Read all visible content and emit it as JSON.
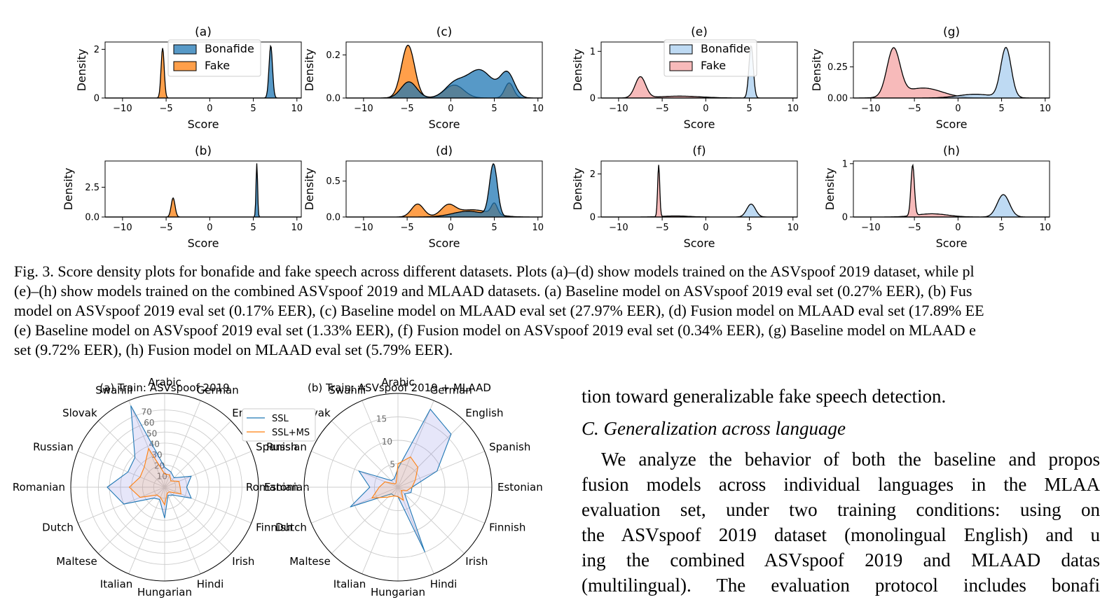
{
  "figure": {
    "x_label": "Score",
    "y_label": "Density",
    "x_ticks": [
      "−10",
      "−5",
      "0",
      "5",
      "10"
    ],
    "legend_left": [
      "Bonafide",
      "Fake"
    ],
    "legend_right": [
      "Bonafide",
      "Fake"
    ],
    "colors": {
      "bonafide_asv": "#1f77b4",
      "fake_asv": "#ff7f0e",
      "bonafide_comb": "#a8cdef",
      "fake_comb": "#f4a3a3"
    }
  },
  "chart_data": [
    {
      "type": "area",
      "title": "(a)",
      "xlabel": "Score",
      "ylabel": "Density",
      "xlim": [
        -12,
        10.5
      ],
      "ylim": [
        0,
        2.3
      ],
      "yticks": [
        "0",
        "2"
      ],
      "legend": "upper-center",
      "series": [
        {
          "name": "Bonafide",
          "peaks": [
            {
              "mu": 7.0,
              "sigma": 0.2,
              "height": 2.15
            }
          ]
        },
        {
          "name": "Fake",
          "peaks": [
            {
              "mu": -5.4,
              "sigma": 0.18,
              "height": 2.05
            }
          ]
        }
      ]
    },
    {
      "type": "area",
      "title": "(b)",
      "xlabel": "Score",
      "ylabel": "Density",
      "xlim": [
        -12,
        10.5
      ],
      "ylim": [
        0,
        4.7
      ],
      "yticks": [
        "0.0",
        "2.5"
      ],
      "series": [
        {
          "name": "Bonafide",
          "peaks": [
            {
              "mu": 5.4,
              "sigma": 0.09,
              "height": 4.5
            }
          ]
        },
        {
          "name": "Fake",
          "peaks": [
            {
              "mu": -4.2,
              "sigma": 0.22,
              "height": 1.6
            }
          ]
        }
      ]
    },
    {
      "type": "area",
      "title": "(c)",
      "xlabel": "Score",
      "ylabel": "Density",
      "xlim": [
        -12,
        10.5
      ],
      "ylim": [
        0,
        0.26
      ],
      "yticks": [
        "0.0",
        "0.2"
      ],
      "series": [
        {
          "name": "Bonafide",
          "peaks": [
            {
              "mu": -4.8,
              "sigma": 0.9,
              "height": 0.075
            },
            {
              "mu": 0.4,
              "sigma": 1.1,
              "height": 0.06
            },
            {
              "mu": 3.3,
              "sigma": 1.5,
              "height": 0.13
            },
            {
              "mu": 6.5,
              "sigma": 0.8,
              "height": 0.11
            }
          ]
        },
        {
          "name": "Fake",
          "peaks": [
            {
              "mu": -4.9,
              "sigma": 0.75,
              "height": 0.245
            },
            {
              "mu": 0.4,
              "sigma": 1.1,
              "height": 0.06
            },
            {
              "mu": 6.7,
              "sigma": 0.5,
              "height": 0.07
            }
          ]
        }
      ]
    },
    {
      "type": "area",
      "title": "(d)",
      "xlabel": "Score",
      "ylabel": "Density",
      "xlim": [
        -12,
        10.5
      ],
      "ylim": [
        0,
        0.78
      ],
      "yticks": [
        "0.0",
        "0.5"
      ],
      "series": [
        {
          "name": "Bonafide",
          "peaks": [
            {
              "mu": 4.9,
              "sigma": 0.45,
              "height": 0.72
            },
            {
              "mu": 2.0,
              "sigma": 1.8,
              "height": 0.08
            }
          ]
        },
        {
          "name": "Fake",
          "peaks": [
            {
              "mu": -3.8,
              "sigma": 0.7,
              "height": 0.18
            },
            {
              "mu": -0.3,
              "sigma": 0.8,
              "height": 0.14
            },
            {
              "mu": 2.5,
              "sigma": 2.0,
              "height": 0.1
            },
            {
              "mu": 5.0,
              "sigma": 0.35,
              "height": 0.15
            }
          ]
        }
      ]
    },
    {
      "type": "area",
      "title": "(e)",
      "xlabel": "Score",
      "ylabel": "Density",
      "xlim": [
        -12,
        10.5
      ],
      "ylim": [
        0,
        1.2
      ],
      "yticks": [
        "0",
        "1"
      ],
      "legend": "upper-center",
      "series": [
        {
          "name": "Bonafide",
          "peaks": [
            {
              "mu": 5.2,
              "sigma": 0.25,
              "height": 1.12
            }
          ]
        },
        {
          "name": "Fake",
          "peaks": [
            {
              "mu": -7.5,
              "sigma": 0.6,
              "height": 0.45
            },
            {
              "mu": -3.0,
              "sigma": 2.5,
              "height": 0.04
            }
          ]
        }
      ]
    },
    {
      "type": "area",
      "title": "(f)",
      "xlabel": "Score",
      "ylabel": "Density",
      "xlim": [
        -12,
        10.5
      ],
      "ylim": [
        0,
        2.6
      ],
      "yticks": [
        "0",
        "2"
      ],
      "series": [
        {
          "name": "Bonafide",
          "peaks": [
            {
              "mu": 5.2,
              "sigma": 0.5,
              "height": 0.6
            }
          ]
        },
        {
          "name": "Fake",
          "peaks": [
            {
              "mu": -5.4,
              "sigma": 0.12,
              "height": 2.4
            },
            {
              "mu": -3.5,
              "sigma": 1.5,
              "height": 0.05
            }
          ]
        }
      ]
    },
    {
      "type": "area",
      "title": "(g)",
      "xlabel": "Score",
      "ylabel": "Density",
      "xlim": [
        -12,
        10.5
      ],
      "ylim": [
        0,
        0.45
      ],
      "yticks": [
        "0.00",
        "0.25"
      ],
      "series": [
        {
          "name": "Bonafide",
          "peaks": [
            {
              "mu": 5.5,
              "sigma": 0.6,
              "height": 0.4
            },
            {
              "mu": 2.0,
              "sigma": 2.0,
              "height": 0.03
            }
          ]
        },
        {
          "name": "Fake",
          "peaks": [
            {
              "mu": -7.4,
              "sigma": 0.75,
              "height": 0.38
            },
            {
              "mu": -4.0,
              "sigma": 2.2,
              "height": 0.08
            }
          ]
        }
      ]
    },
    {
      "type": "area",
      "title": "(h)",
      "xlabel": "Score",
      "ylabel": "Density",
      "xlim": [
        -12,
        10.5
      ],
      "ylim": [
        0,
        1.05
      ],
      "yticks": [
        "0",
        "1"
      ],
      "series": [
        {
          "name": "Bonafide",
          "peaks": [
            {
              "mu": 5.2,
              "sigma": 0.7,
              "height": 0.42
            }
          ]
        },
        {
          "name": "Fake",
          "peaks": [
            {
              "mu": -5.2,
              "sigma": 0.2,
              "height": 0.95
            },
            {
              "mu": -3.0,
              "sigma": 1.8,
              "height": 0.06
            }
          ]
        }
      ]
    },
    {
      "type": "radar",
      "title": "(a) Train: ASVspoof 2019",
      "legend": "top-right",
      "categories": [
        "Arabic",
        "German",
        "English",
        "Spanish",
        "Estonian",
        "Finnish",
        "Irish",
        "Hindi",
        "Hungarian",
        "Italian",
        "Maltese",
        "Dutch",
        "Romanian",
        "Russian",
        "Slovak",
        "Swahili"
      ],
      "rticks": [
        "10",
        "20",
        "30",
        "40",
        "50",
        "60",
        "70"
      ],
      "rmax": 85,
      "series": [
        {
          "name": "SSL",
          "values": [
            18,
            15,
            12,
            26,
            20,
            26,
            10,
            8,
            28,
            12,
            14,
            40,
            52,
            36,
            38,
            80
          ]
        },
        {
          "name": "SSL+MS",
          "values": [
            12,
            12,
            8,
            14,
            14,
            16,
            6,
            6,
            16,
            10,
            10,
            24,
            32,
            24,
            26,
            38
          ]
        }
      ]
    },
    {
      "type": "radar",
      "title": "(b) Train: ASVspoof 2019 + MLAAD",
      "legend": "none",
      "categories": [
        "Arabic",
        "German",
        "English",
        "Spanish",
        "Estonian",
        "Finnish",
        "Irish",
        "Hindi",
        "Hungarian",
        "Italian",
        "Maltese",
        "Dutch",
        "Romanian",
        "Russian",
        "Slovak",
        "Swahili"
      ],
      "rticks": [
        "5",
        "10",
        "15"
      ],
      "rmax": 20,
      "series": [
        {
          "name": "SSL",
          "values": [
            4,
            18,
            16,
            9,
            3,
            3,
            2,
            15,
            2,
            2,
            2,
            11,
            6,
            9,
            2,
            2
          ]
        },
        {
          "name": "SSL+MS",
          "values": [
            5,
            7,
            6,
            4,
            3,
            2,
            1,
            3,
            2,
            2,
            3,
            6,
            4,
            3,
            1,
            1
          ]
        }
      ]
    }
  ],
  "radar_legend": [
    "SSL",
    "SSL+MS"
  ],
  "radar_colors": {
    "ssl": "#1f77b4",
    "sslms": "#ff7f0e"
  },
  "caption": {
    "l1": "Fig. 3.   Score density plots for bonafide and fake speech across different datasets. Plots (a)–(d) show models trained on the ASVspoof 2019 dataset, while pl",
    "l2": "(e)–(h) show models trained on the combined ASVspoof 2019 and MLAAD datasets. (a) Baseline model on ASVspoof 2019 eval set (0.27% EER), (b) Fus",
    "l3": "model on ASVspoof 2019 eval set (0.17% EER), (c) Baseline model on MLAAD eval set (27.97% EER), (d) Fusion model on MLAAD eval set (17.89% EE",
    "l4": "(e) Baseline model on ASVspoof 2019 eval set (1.33% EER), (f) Fusion model on ASVspoof 2019 eval set (0.34% EER), (g) Baseline model on MLAAD e",
    "l5": "set (9.72% EER), (h) Fusion model on MLAAD eval set (5.79% EER)."
  },
  "body": {
    "l0": "tion toward generalizable fake speech detection.",
    "heading": "C.  Generalization across language",
    "l1": "We analyze the behavior of both the baseline and propos",
    "l2": "fusion models across individual languages in the MLAA",
    "l3": "evaluation set, under two training conditions: using on",
    "l4": "the ASVspoof 2019 dataset (monolingual English) and u",
    "l5": "ing the combined ASVspoof 2019 and MLAAD datas",
    "l6": "(multilingual). The evaluation protocol includes bonafi"
  }
}
